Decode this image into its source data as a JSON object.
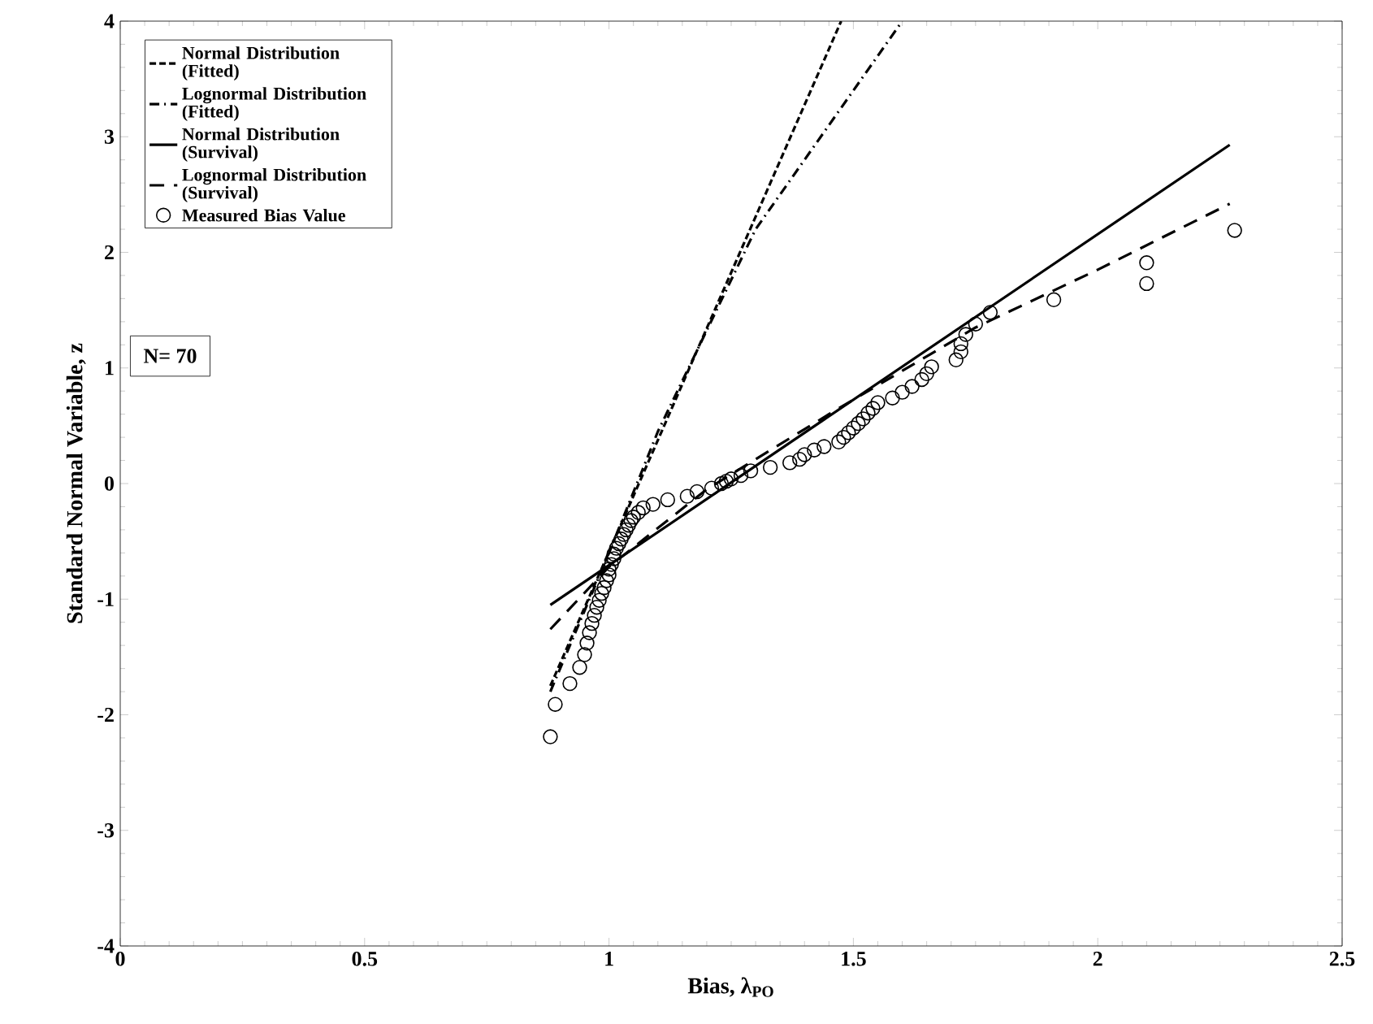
{
  "chart_data": {
    "type": "line",
    "xlabel": "Bias, λ$_{PO}$",
    "ylabel": "Standard Normal Variable, z",
    "xlim": [
      0,
      2.5
    ],
    "xticks": [
      0,
      0.5,
      1,
      1.5,
      2,
      2.5
    ],
    "ylim": [
      -4,
      4
    ],
    "yticks": [
      -4,
      -3,
      -2,
      -1,
      0,
      1,
      2,
      3,
      4
    ],
    "grid": false,
    "legend": "top left",
    "annotations": [
      "N= 70"
    ],
    "series": [
      {
        "name": "Normal Distribution (Fitted)",
        "color": "#000000",
        "line_style": "dashed",
        "x": [
          0.88,
          1.475
        ],
        "values": [
          -1.75,
          4
        ]
      },
      {
        "name": "Lognormal Distribution (Fitted)",
        "color": "#000000",
        "line_style": "dashdot",
        "x": [
          0.88,
          1.0,
          1.1,
          1.3,
          1.6
        ],
        "values": [
          -1.8,
          -0.6,
          0.45,
          2.2,
          4
        ]
      },
      {
        "name": "Normal Distribution (Survival)",
        "color": "#000000",
        "line_style": "solid",
        "x": [
          0.88,
          2.27
        ],
        "values": [
          -1.05,
          2.93
        ]
      },
      {
        "name": "Lognormal Distribution (Survival)",
        "color": "#000000",
        "line_style": "longdashed",
        "x": [
          0.88,
          1.0,
          1.2,
          1.45,
          1.75,
          2.0,
          2.27
        ],
        "values": [
          -1.26,
          -0.72,
          -0.05,
          0.6,
          1.35,
          1.85,
          2.42
        ]
      },
      {
        "name": "Measured Bias Value",
        "type": "scatter",
        "color": "#000000",
        "marker": "circle",
        "x": [
          0.88,
          0.89,
          0.92,
          0.94,
          0.95,
          0.955,
          0.96,
          0.965,
          0.97,
          0.975,
          0.98,
          0.985,
          0.99,
          0.995,
          1.0,
          1.0,
          1.005,
          1.01,
          1.01,
          1.015,
          1.02,
          1.025,
          1.03,
          1.035,
          1.04,
          1.045,
          1.05,
          1.06,
          1.07,
          1.09,
          1.12,
          1.16,
          1.18,
          1.21,
          1.23,
          1.24,
          1.25,
          1.27,
          1.29,
          1.33,
          1.37,
          1.39,
          1.4,
          1.42,
          1.44,
          1.47,
          1.48,
          1.49,
          1.5,
          1.51,
          1.52,
          1.53,
          1.54,
          1.55,
          1.58,
          1.6,
          1.62,
          1.64,
          1.65,
          1.66,
          1.71,
          1.72,
          1.72,
          1.73,
          1.75,
          1.78,
          1.91,
          2.1,
          2.1,
          2.28
        ],
        "values": [
          -2.19,
          -1.91,
          -1.73,
          -1.59,
          -1.48,
          -1.38,
          -1.29,
          -1.21,
          -1.14,
          -1.07,
          -1.01,
          -0.95,
          -0.9,
          -0.84,
          -0.79,
          -0.74,
          -0.7,
          -0.65,
          -0.61,
          -0.56,
          -0.52,
          -0.48,
          -0.44,
          -0.4,
          -0.36,
          -0.32,
          -0.29,
          -0.25,
          -0.21,
          -0.18,
          -0.14,
          -0.11,
          -0.07,
          -0.04,
          0.0,
          0.02,
          0.04,
          0.07,
          0.11,
          0.14,
          0.18,
          0.21,
          0.25,
          0.29,
          0.32,
          0.36,
          0.4,
          0.44,
          0.48,
          0.52,
          0.56,
          0.61,
          0.65,
          0.7,
          0.74,
          0.79,
          0.84,
          0.9,
          0.95,
          1.01,
          1.07,
          1.14,
          1.21,
          1.29,
          1.38,
          1.48,
          1.59,
          1.73,
          1.91,
          2.19
        ]
      }
    ]
  }
}
